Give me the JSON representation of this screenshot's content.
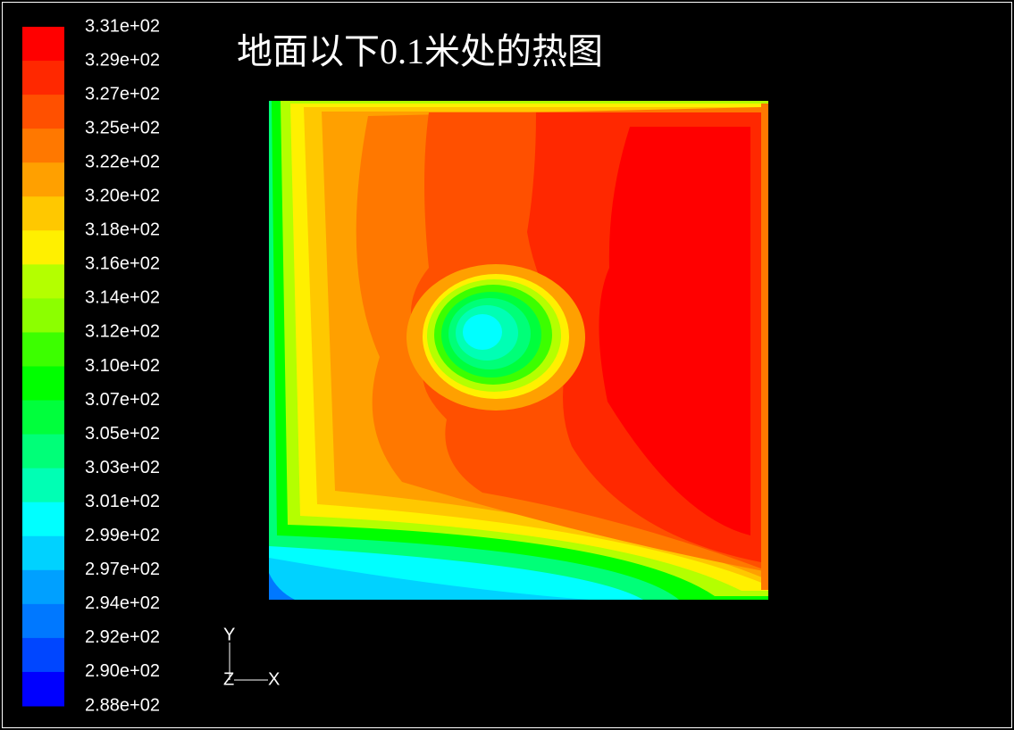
{
  "title": "地面以下0.1米处的热图",
  "colorbar": {
    "labels": [
      "3.31e+02",
      "3.29e+02",
      "3.27e+02",
      "3.25e+02",
      "3.22e+02",
      "3.20e+02",
      "3.18e+02",
      "3.16e+02",
      "3.14e+02",
      "3.12e+02",
      "3.10e+02",
      "3.07e+02",
      "3.05e+02",
      "3.03e+02",
      "3.01e+02",
      "2.99e+02",
      "2.97e+02",
      "2.94e+02",
      "2.92e+02",
      "2.90e+02",
      "2.88e+02"
    ],
    "colors": [
      "#ff0000",
      "#ff2800",
      "#ff5000",
      "#ff7800",
      "#ffa000",
      "#ffc800",
      "#fff000",
      "#b4ff00",
      "#8cff00",
      "#3cff00",
      "#00ff00",
      "#00ff3c",
      "#00ff78",
      "#00ffb4",
      "#00ffff",
      "#00d2ff",
      "#00a0ff",
      "#0078ff",
      "#0046ff",
      "#0000ff"
    ]
  },
  "axes": {
    "y": "Y",
    "z": "Z",
    "x": "X"
  }
}
